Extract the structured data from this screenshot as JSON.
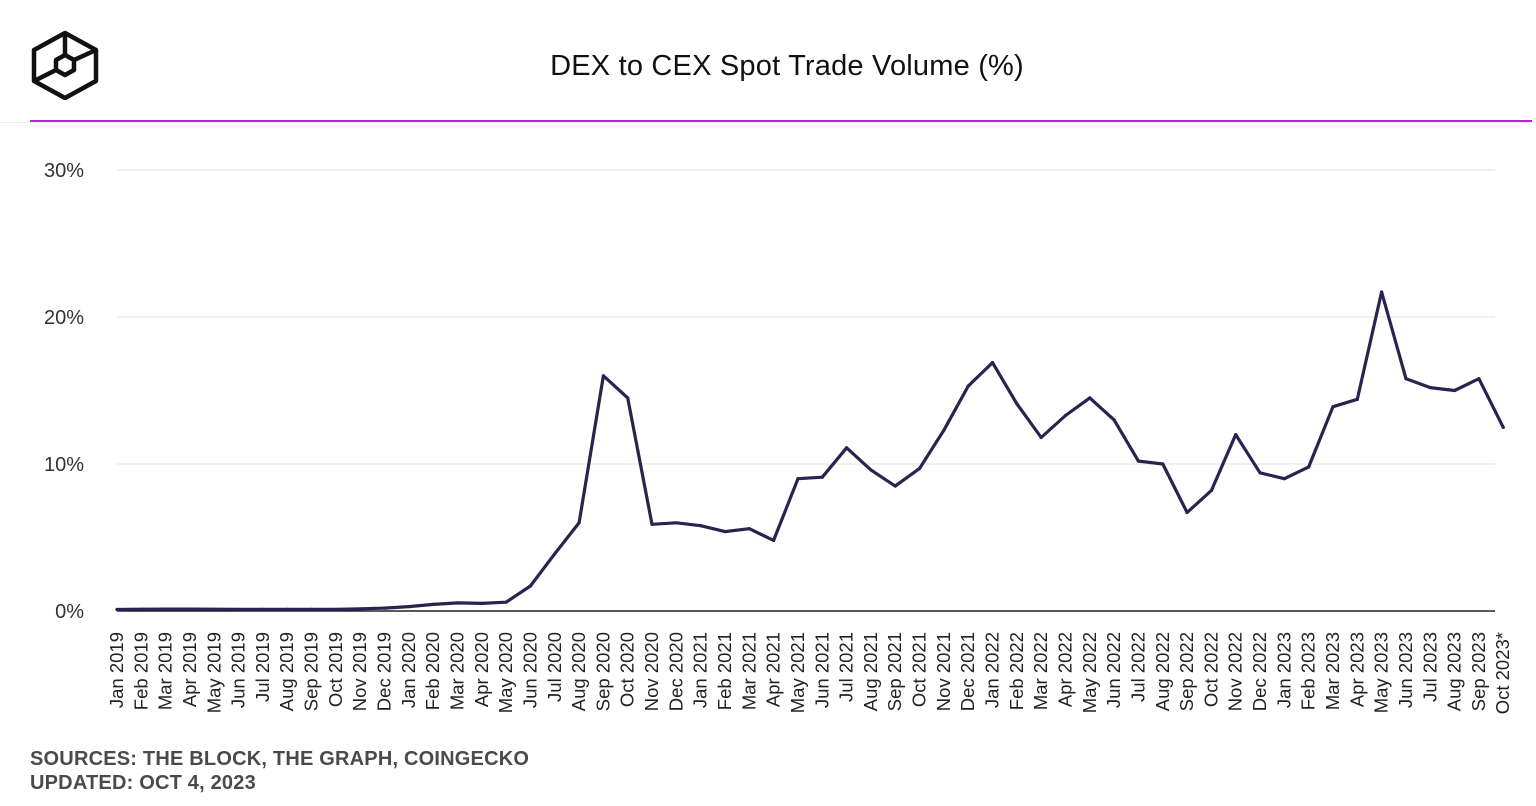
{
  "header": {
    "title": "DEX to CEX Spot Trade Volume (%)",
    "logo_icon": "the-block-cube-logo-icon"
  },
  "colors": {
    "accent": "#b624d6",
    "line": "#28234f",
    "grid": "#ececec",
    "axis": "#222222"
  },
  "chart_data": {
    "type": "line",
    "title": "DEX to CEX Spot Trade Volume (%)",
    "xlabel": "",
    "ylabel": "",
    "ylim": [
      0,
      30
    ],
    "yticks": [
      0,
      10,
      20,
      30
    ],
    "ytick_labels": [
      "0%",
      "10%",
      "20%",
      "30%"
    ],
    "grid": true,
    "legend": "none",
    "categories": [
      "Jan 2019",
      "Feb 2019",
      "Mar 2019",
      "Apr 2019",
      "May 2019",
      "Jun 2019",
      "Jul 2019",
      "Aug 2019",
      "Sep 2019",
      "Oct 2019",
      "Nov 2019",
      "Dec 2019",
      "Jan 2020",
      "Feb 2020",
      "Mar 2020",
      "Apr 2020",
      "May 2020",
      "Jun 2020",
      "Jul 2020",
      "Aug 2020",
      "Sep 2020",
      "Oct 2020",
      "Nov 2020",
      "Dec 2020",
      "Jan 2021",
      "Feb 2021",
      "Mar 2021",
      "Apr 2021",
      "May 2021",
      "Jun 2021",
      "Jul 2021",
      "Aug 2021",
      "Sep 2021",
      "Oct 2021",
      "Nov 2021",
      "Dec 2021",
      "Jan 2022",
      "Feb 2022",
      "Mar 2022",
      "Apr 2022",
      "May 2022",
      "Jun 2022",
      "Jul 2022",
      "Aug 2022",
      "Sep 2022",
      "Oct 2022",
      "Nov 2022",
      "Dec 2022",
      "Jan 2023",
      "Feb 2023",
      "Mar 2023",
      "Apr 2023",
      "May 2023",
      "Jun 2023",
      "Jul 2023",
      "Aug 2023",
      "Sep 2023",
      "Oct 2023*"
    ],
    "series": [
      {
        "name": "DEX to CEX Spot Trade Volume (%)",
        "values": [
          0.1,
          0.12,
          0.13,
          0.13,
          0.12,
          0.11,
          0.11,
          0.11,
          0.11,
          0.11,
          0.15,
          0.2,
          0.3,
          0.45,
          0.55,
          0.52,
          0.6,
          1.7,
          3.9,
          6.0,
          16.0,
          14.5,
          5.9,
          6.0,
          5.8,
          5.4,
          5.6,
          4.8,
          9.0,
          9.1,
          11.1,
          9.6,
          8.5,
          9.7,
          12.3,
          15.3,
          16.9,
          14.1,
          11.8,
          13.3,
          14.5,
          13.0,
          10.2,
          10.0,
          6.7,
          8.2,
          12.0,
          9.4,
          9.0,
          9.8,
          13.9,
          14.4,
          21.7,
          15.8,
          15.2,
          15.0,
          15.8,
          12.5
        ]
      }
    ]
  },
  "footer": {
    "sources": "SOURCES: THE BLOCK, THE GRAPH, COINGECKO",
    "updated": "UPDATED: OCT 4, 2023"
  }
}
